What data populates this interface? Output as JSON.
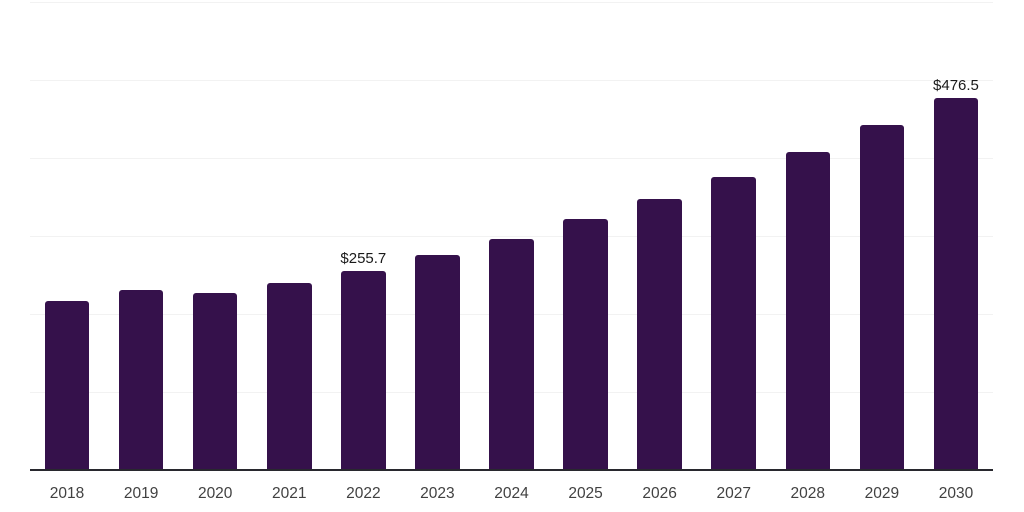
{
  "chart_data": {
    "type": "bar",
    "title": "",
    "xlabel": "",
    "ylabel": "",
    "categories": [
      "2018",
      "2019",
      "2020",
      "2021",
      "2022",
      "2023",
      "2024",
      "2025",
      "2026",
      "2027",
      "2028",
      "2029",
      "2030"
    ],
    "values": [
      216.9,
      231.3,
      226.8,
      239.5,
      255.7,
      275.8,
      296.2,
      321.8,
      347.4,
      375.6,
      407.7,
      442.3,
      476.5
    ],
    "data_labels": [
      {
        "category": "2022",
        "text": "$255.7"
      },
      {
        "category": "2030",
        "text": "$476.5"
      }
    ],
    "ylim": [
      0,
      600
    ],
    "gridline_values": [
      100,
      200,
      300,
      400,
      500,
      600
    ],
    "grid_on": true,
    "legend": "none",
    "colors": {
      "bar": "#35114b",
      "gridline": "#f2f2f2",
      "axis_line": "#28282e",
      "tick_label": "#414141",
      "data_label": "#1a1a1a",
      "background": "#ffffff"
    }
  }
}
